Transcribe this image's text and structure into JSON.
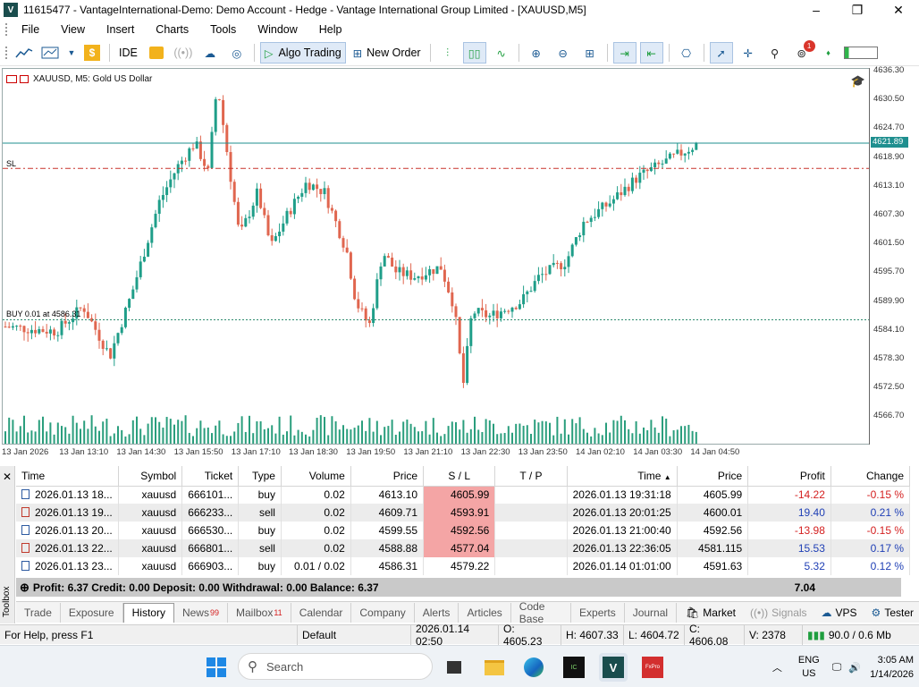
{
  "window": {
    "title": "11615477 - VantageInternational-Demo: Demo Account - Hedge - Vantage International Group Limited - [XAUUSD,M5]",
    "app_icon": "V",
    "controls": [
      "–",
      "❐",
      "✕"
    ]
  },
  "menu": [
    "File",
    "View",
    "Insert",
    "Charts",
    "Tools",
    "Window",
    "Help"
  ],
  "toolbar": {
    "ide": "IDE",
    "algo_trading": "Algo Trading",
    "new_order": "New Order",
    "notification_count": "1"
  },
  "chart": {
    "title": "XAUUSD, M5:  Gold US Dollar",
    "sl_label": "SL",
    "buy_label": "BUY 0.01 at 4586.31",
    "current_price": "4621.89",
    "y_ticks": [
      "4636.30",
      "4630.50",
      "4624.70",
      "4618.90",
      "4613.10",
      "4607.30",
      "4601.50",
      "4595.70",
      "4589.90",
      "4584.10",
      "4578.30",
      "4572.50",
      "4566.70"
    ],
    "x_ticks": [
      "13 Jan 2026",
      "13 Jan 13:10",
      "13 Jan 14:30",
      "13 Jan 15:50",
      "13 Jan 17:10",
      "13 Jan 18:30",
      "13 Jan 19:50",
      "13 Jan 21:10",
      "13 Jan 22:30",
      "13 Jan 23:50",
      "14 Jan 02:10",
      "14 Jan 03:30",
      "14 Jan 04:50"
    ],
    "colors": {
      "bull": "#1f9e89",
      "bear": "#e0664f",
      "price_line": "#1f8f8f",
      "sl_line": "#c8322b",
      "buy_line": "#2e8b6f"
    }
  },
  "history": {
    "columns": [
      "Time",
      "Symbol",
      "Ticket",
      "Type",
      "Volume",
      "Price",
      "S / L",
      "T / P",
      "Time",
      "Price",
      "Profit",
      "Change"
    ],
    "sort_indicator": "▲",
    "rows": [
      {
        "time": "2026.01.13 18...",
        "symbol": "xauusd",
        "ticket": "666101...",
        "type": "buy",
        "volume": "0.02",
        "price": "4613.10",
        "sl": "4605.99",
        "tp": "",
        "close_time": "2026.01.13 19:31:18",
        "close_price": "4605.99",
        "profit": "-14.22",
        "change": "-0.15 %",
        "sl_hit": true
      },
      {
        "time": "2026.01.13 19...",
        "symbol": "xauusd",
        "ticket": "666233...",
        "type": "sell",
        "volume": "0.02",
        "price": "4609.71",
        "sl": "4593.91",
        "tp": "",
        "close_time": "2026.01.13 20:01:25",
        "close_price": "4600.01",
        "profit": "19.40",
        "change": "0.21 %",
        "sl_hit": true
      },
      {
        "time": "2026.01.13 20...",
        "symbol": "xauusd",
        "ticket": "666530...",
        "type": "buy",
        "volume": "0.02",
        "price": "4599.55",
        "sl": "4592.56",
        "tp": "",
        "close_time": "2026.01.13 21:00:40",
        "close_price": "4592.56",
        "profit": "-13.98",
        "change": "-0.15 %",
        "sl_hit": true
      },
      {
        "time": "2026.01.13 22...",
        "symbol": "xauusd",
        "ticket": "666801...",
        "type": "sell",
        "volume": "0.02",
        "price": "4588.88",
        "sl": "4577.04",
        "tp": "",
        "close_time": "2026.01.13 22:36:05",
        "close_price": "4581.115",
        "profit": "15.53",
        "change": "0.17 %",
        "sl_hit": true
      },
      {
        "time": "2026.01.13 23...",
        "symbol": "xauusd",
        "ticket": "666903...",
        "type": "buy",
        "volume": "0.01 / 0.02",
        "price": "4586.31",
        "sl": "4579.22",
        "tp": "",
        "close_time": "2026.01.14 01:01:00",
        "close_price": "4591.63",
        "profit": "5.32",
        "change": "0.12 %",
        "sl_hit": false
      }
    ],
    "summary": {
      "text": "Profit: 6.37  Credit: 0.00  Deposit: 0.00  Withdrawal: 0.00  Balance: 6.37",
      "total": "7.04"
    }
  },
  "toolbox": {
    "label": "Toolbox",
    "close": "✕"
  },
  "tabs": [
    {
      "label": "Trade"
    },
    {
      "label": "Exposure"
    },
    {
      "label": "History",
      "active": true
    },
    {
      "label": "News",
      "badge": "99"
    },
    {
      "label": "Mailbox",
      "badge": "11"
    },
    {
      "label": "Calendar"
    },
    {
      "label": "Company"
    },
    {
      "label": "Alerts"
    },
    {
      "label": "Articles"
    },
    {
      "label": "Code Base"
    },
    {
      "label": "Experts"
    },
    {
      "label": "Journal"
    }
  ],
  "tab_right": {
    "market": "Market",
    "signals": "Signals",
    "vps": "VPS",
    "tester": "Tester"
  },
  "status": {
    "help": "For Help, press F1",
    "profile": "Default",
    "datetime": "2026.01.14 02:50",
    "open": "O: 4605.23",
    "high": "H: 4607.33",
    "low": "L: 4604.72",
    "close": "C: 4606.08",
    "volume": "V: 2378",
    "traffic": "90.0 / 0.6 Mb"
  },
  "taskbar": {
    "search_placeholder": "Search",
    "lang": "ENG",
    "region": "US",
    "time": "3:05 AM",
    "date": "1/14/2026"
  }
}
